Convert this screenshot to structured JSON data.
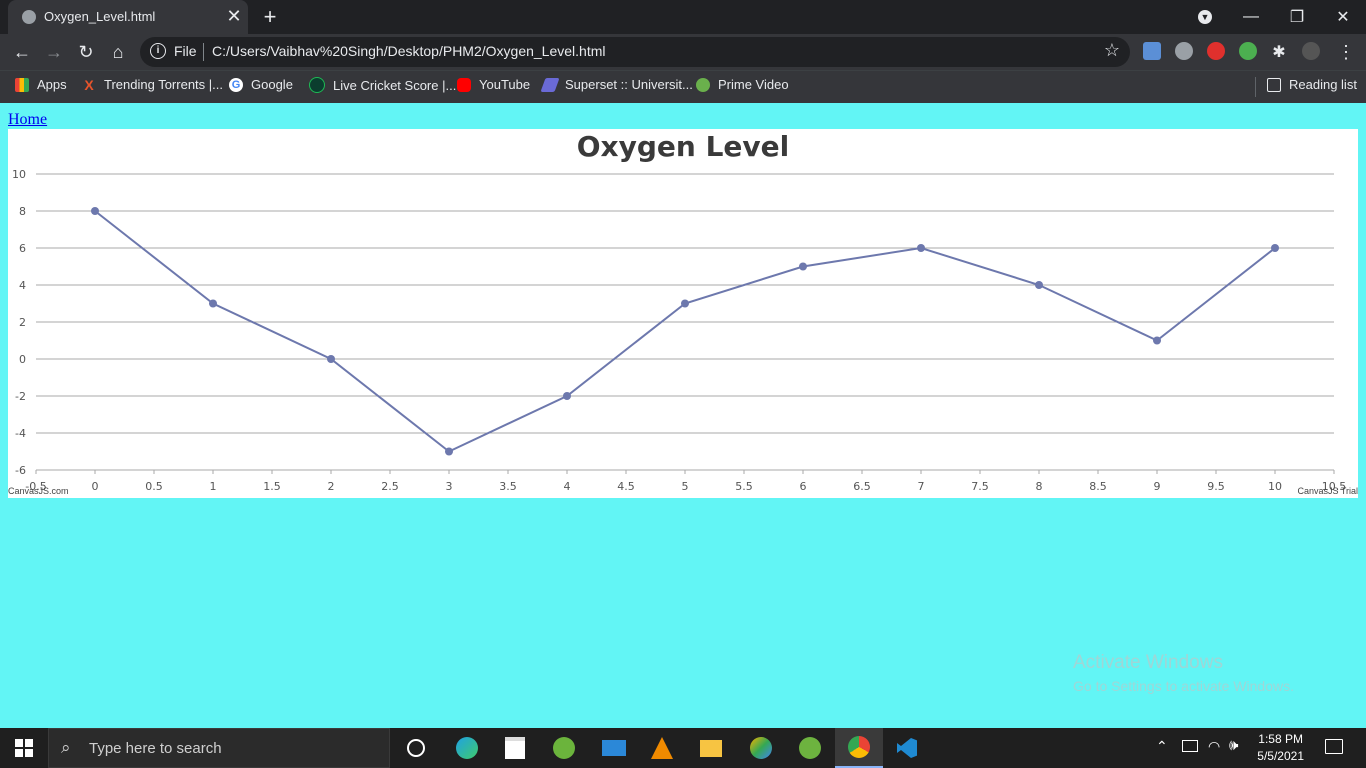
{
  "browser": {
    "tab_title": "Oxygen_Level.html",
    "file_label": "File",
    "url": "C:/Users/Vaibhav%20Singh/Desktop/PHM2/Oxygen_Level.html",
    "bookmarks": [
      {
        "label": "Apps",
        "icon": "apps-grid-icon",
        "color": "#f4b400"
      },
      {
        "label": "Trending Torrents |...",
        "icon": "x-icon",
        "color": "#e8542b"
      },
      {
        "label": "Google",
        "icon": "google-icon",
        "color": "#ffffff"
      },
      {
        "label": "Live Cricket Score |...",
        "icon": "cricket-icon",
        "color": "#1db954"
      },
      {
        "label": "YouTube",
        "icon": "youtube-icon",
        "color": "#ff0000"
      },
      {
        "label": "Superset :: Universit...",
        "icon": "superset-icon",
        "color": "#6a6ad6"
      },
      {
        "label": "Prime Video",
        "icon": "prime-video-icon",
        "color": "#6ab04c"
      }
    ],
    "reading_list": "Reading list"
  },
  "page": {
    "home_link": "Home",
    "credit_left": "CanvasJS.com",
    "credit_right": "CanvasJS Trial"
  },
  "chart_data": {
    "type": "line",
    "title": "Oxygen Level",
    "x": [
      0,
      1,
      2,
      3,
      4,
      5,
      6,
      7,
      8,
      9,
      10
    ],
    "series": [
      {
        "values": [
          8,
          3,
          0,
          -5,
          -2,
          3,
          5,
          6,
          4,
          1,
          6
        ],
        "color": "#6d78ad"
      }
    ],
    "xlim": [
      -0.5,
      10.5
    ],
    "ylim": [
      -6,
      10
    ],
    "x_ticks": [
      "-0.5",
      "0",
      "0.5",
      "1",
      "1.5",
      "2",
      "2.5",
      "3",
      "3.5",
      "4",
      "4.5",
      "5",
      "5.5",
      "6",
      "6.5",
      "7",
      "7.5",
      "8",
      "8.5",
      "9",
      "9.5",
      "10",
      "10.5"
    ],
    "y_ticks": [
      "-6",
      "-4",
      "-2",
      "0",
      "2",
      "4",
      "6",
      "8",
      "10"
    ],
    "grid": true
  },
  "windows": {
    "watermark_line1": "Activate Windows",
    "watermark_line2": "Go to Settings to activate Windows.",
    "search_placeholder": "Type here to search",
    "time": "1:58 PM",
    "date": "5/5/2021"
  }
}
